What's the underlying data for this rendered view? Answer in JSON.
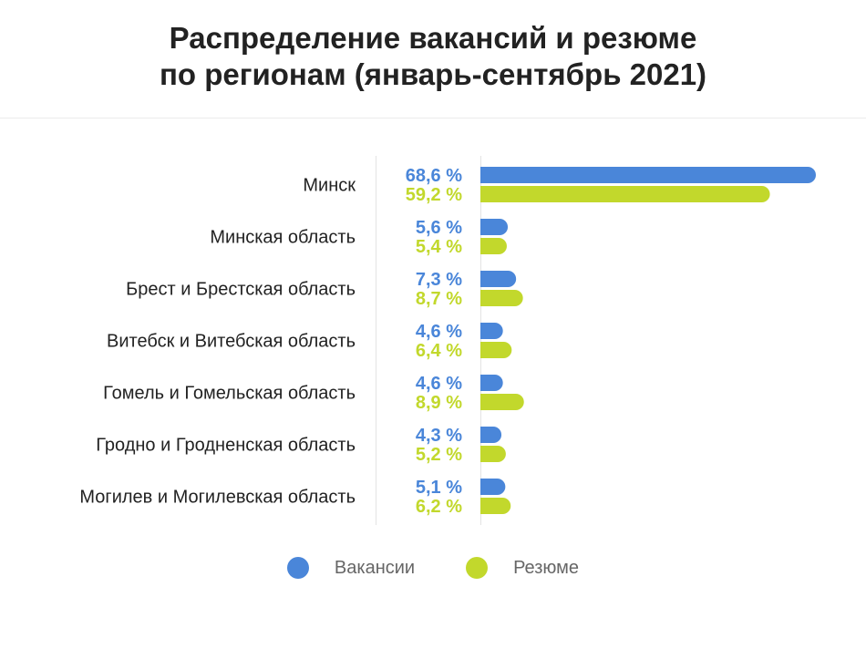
{
  "title_line1": "Распределение вакансий и резюме",
  "title_line2": "по регионам (январь-сентябрь 2021)",
  "colors": {
    "vacancies": "#4a86d9",
    "resumes": "#c2d82c",
    "text": "#222222",
    "divider": "#e3e3e3"
  },
  "legend": {
    "vacancies": "Вакансии",
    "resumes": "Резюме"
  },
  "chart_data": {
    "type": "bar",
    "orientation": "horizontal",
    "title": "Распределение вакансий и резюме по регионам (январь-сентябрь 2021)",
    "categories": [
      "Минск",
      "Минская область",
      "Брест и Брестская область",
      "Витебск и Витебская область",
      "Гомель и Гомельская область",
      "Гродно и Гродненская область",
      "Могилев и Могилевская область"
    ],
    "series": [
      {
        "name": "Вакансии",
        "values": [
          68.6,
          5.6,
          7.3,
          4.6,
          4.6,
          4.3,
          5.1
        ],
        "labels": [
          "68,6 %",
          "5,6 %",
          "7,3 %",
          "4,6 %",
          "4,6 %",
          "4,3 %",
          "5,1 %"
        ]
      },
      {
        "name": "Резюме",
        "values": [
          59.2,
          5.4,
          8.7,
          6.4,
          8.9,
          5.2,
          6.2
        ],
        "labels": [
          "59,2 %",
          "5,4 %",
          "8,7 %",
          "6,4 %",
          "8,9 %",
          "5,2 %",
          "6,2 %"
        ]
      }
    ],
    "xlim": [
      0,
      68.6
    ],
    "grid": false,
    "legend_position": "bottom"
  }
}
